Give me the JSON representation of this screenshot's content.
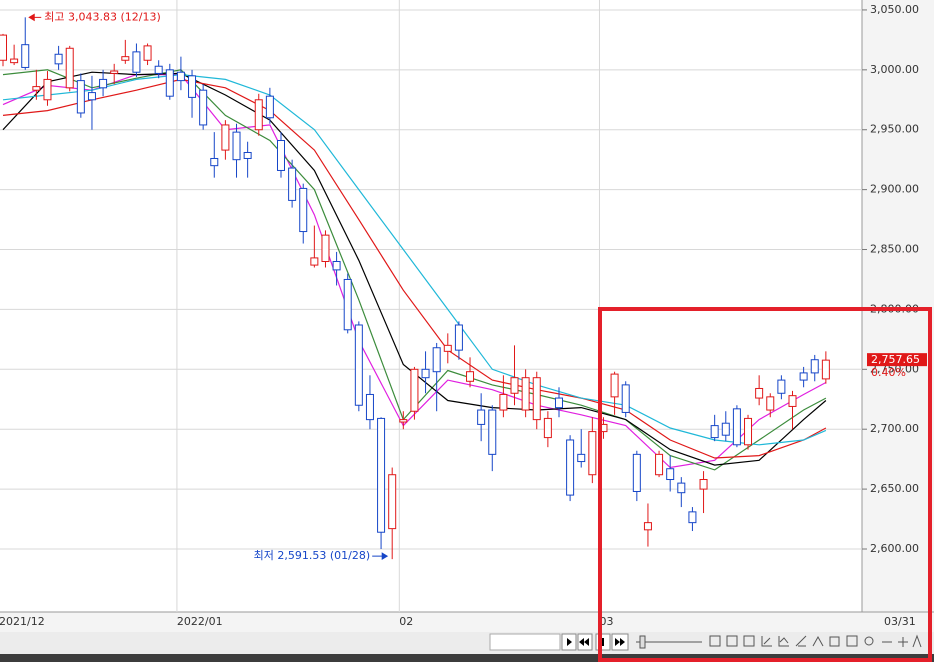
{
  "chart_data": {
    "type": "candlestick",
    "high_label": "최고 3,043.83 (12/13)",
    "low_label": "최저 2,591.53 (01/28)",
    "last_price": {
      "value": 2757.65,
      "label": "2,757.65"
    },
    "change": "0.40%",
    "cursor_date": "03/31",
    "up_color": "#e01818",
    "down_color": "#1646c8",
    "xlim": [
      -0.27,
      77.25
    ],
    "xticks": [
      {
        "value": 0,
        "label": "2021/12"
      },
      {
        "value": 16,
        "label": "2022/01"
      },
      {
        "value": 36,
        "label": "02"
      },
      {
        "value": 54,
        "label": "03"
      }
    ],
    "ylim": [
      2547.4,
      3058.3
    ],
    "yticks": [
      {
        "value": 2600,
        "label": "2,600.00"
      },
      {
        "value": 2650,
        "label": "2,650.00"
      },
      {
        "value": 2700,
        "label": "2,700.00"
      },
      {
        "value": 2750,
        "label": "2,750.00"
      },
      {
        "value": 2800,
        "label": "2,800.00"
      },
      {
        "value": 2850,
        "label": "2,850.00"
      },
      {
        "value": 2900,
        "label": "2,900.00"
      },
      {
        "value": 2950,
        "label": "2,950.00"
      },
      {
        "value": 3000,
        "label": "3,000.00"
      },
      {
        "value": 3050,
        "label": "3,050.00"
      }
    ],
    "grid": true,
    "open": [
      3008,
      3006,
      3021,
      2983,
      2975,
      3013,
      2985,
      2991,
      2981,
      2992,
      2997,
      3008,
      3015,
      3008,
      3003,
      3000,
      2998,
      2995,
      2983,
      2926,
      2933,
      2948,
      2931,
      2950,
      2978,
      2941,
      2918,
      2901,
      2837,
      2840,
      2840,
      2825,
      2787,
      2729,
      2709,
      2617,
      2706,
      2715,
      2750,
      2768,
      2765,
      2787,
      2740,
      2716,
      2716,
      2716,
      2730,
      2716,
      2708,
      2693,
      2726,
      2691,
      2679,
      2662,
      2698,
      2727,
      2737,
      2679,
      2616,
      2662,
      2667,
      2655,
      2631,
      2650,
      2703,
      2705,
      2717,
      2687,
      2726,
      2716,
      2741,
      2719,
      2747,
      2758,
      2742
    ],
    "high": [
      3030,
      3021,
      3043.83,
      3000,
      2999,
      3020,
      3020,
      2997,
      2995,
      3000,
      3005,
      3025,
      3022,
      3022,
      3008,
      3005,
      3011,
      3000,
      2988,
      2948,
      2958,
      2955,
      2940,
      2980,
      2985,
      2948,
      2925,
      2905,
      2870,
      2866,
      2848,
      2830,
      2790,
      2745,
      2710,
      2668,
      2715,
      2752,
      2765,
      2772,
      2780,
      2790,
      2760,
      2730,
      2720,
      2745,
      2770,
      2750,
      2748,
      2715,
      2735,
      2695,
      2700,
      2710,
      2710,
      2748,
      2740,
      2682,
      2638,
      2682,
      2678,
      2660,
      2635,
      2665,
      2712,
      2715,
      2720,
      2712,
      2745,
      2730,
      2745,
      2732,
      2752,
      2762,
      2765
    ],
    "low": [
      3003,
      3004,
      3000,
      2975,
      2970,
      3000,
      2982,
      2960,
      2950,
      2978,
      2988,
      3005,
      2994,
      3004,
      2993,
      2975,
      2983,
      2960,
      2950,
      2910,
      2925,
      2910,
      2910,
      2945,
      2955,
      2910,
      2885,
      2855,
      2835,
      2835,
      2820,
      2780,
      2715,
      2700,
      2600,
      2591.53,
      2700,
      2708,
      2730,
      2715,
      2755,
      2758,
      2735,
      2690,
      2665,
      2710,
      2720,
      2710,
      2700,
      2685,
      2710,
      2640,
      2668,
      2655,
      2692,
      2712,
      2710,
      2640,
      2602,
      2660,
      2648,
      2635,
      2615,
      2630,
      2690,
      2690,
      2685,
      2683,
      2720,
      2710,
      2725,
      2700,
      2735,
      2740,
      2738
    ],
    "close": [
      3029,
      3009,
      3002,
      2986,
      2992,
      3005,
      3018,
      2964,
      2975,
      2985,
      2999,
      3011,
      2998,
      3020,
      2997,
      2978,
      2991,
      2977,
      2954,
      2920,
      2954,
      2925,
      2926,
      2975,
      2960,
      2916,
      2891,
      2865,
      2843,
      2862,
      2833,
      2783,
      2720,
      2708,
      2614,
      2662,
      2708,
      2750,
      2743,
      2748,
      2770,
      2766,
      2748,
      2704,
      2679,
      2729,
      2743,
      2743,
      2743,
      2709,
      2718,
      2645,
      2673,
      2698,
      2704,
      2746,
      2714,
      2648,
      2622,
      2679,
      2658,
      2647,
      2622,
      2658,
      2693,
      2695,
      2687,
      2709,
      2734,
      2727,
      2730,
      2728,
      2741,
      2747,
      2757.65
    ],
    "lines": [
      {
        "color": "#e020e0",
        "x": [
          0,
          4,
          8,
          12,
          16,
          20,
          24,
          28,
          32,
          36,
          40,
          44,
          48,
          52,
          56,
          60,
          64,
          68,
          72,
          74
        ],
        "values": [
          2971,
          2987,
          2983,
          2996,
          2996,
          2950,
          2954,
          2879,
          2774,
          2703,
          2741,
          2733,
          2720,
          2712,
          2703,
          2668,
          2674,
          2708,
          2729,
          2739
        ]
      },
      {
        "color": "#3c8c3c",
        "x": [
          0,
          4,
          8,
          12,
          16,
          20,
          24,
          28,
          32,
          36,
          40,
          44,
          48,
          52,
          56,
          60,
          64,
          68,
          72,
          74
        ],
        "values": [
          2996,
          3000,
          2985,
          2993,
          3000,
          2962,
          2941,
          2900,
          2808,
          2708,
          2749,
          2737,
          2729,
          2720,
          2708,
          2678,
          2666,
          2691,
          2716,
          2726
        ]
      },
      {
        "color": "#000000",
        "x": [
          0,
          4,
          8,
          12,
          16,
          20,
          24,
          28,
          32,
          36,
          40,
          44,
          48,
          52,
          56,
          60,
          64,
          68,
          72,
          74
        ],
        "values": [
          2950,
          2990,
          2998,
          2996,
          2997,
          2979,
          2958,
          2916,
          2841,
          2754,
          2724,
          2718,
          2716,
          2718,
          2708,
          2683,
          2670,
          2674,
          2708,
          2724
        ]
      },
      {
        "color": "#e01818",
        "x": [
          0,
          4,
          8,
          12,
          16,
          20,
          24,
          28,
          32,
          36,
          40,
          44,
          48,
          52,
          56,
          60,
          64,
          68,
          72,
          74
        ],
        "values": [
          2962,
          2966,
          2975,
          2983,
          2992,
          2985,
          2966,
          2933,
          2875,
          2816,
          2766,
          2741,
          2733,
          2726,
          2716,
          2691,
          2676,
          2678,
          2691,
          2701
        ]
      },
      {
        "color": "#20b8d8",
        "x": [
          0,
          4,
          8,
          12,
          16,
          20,
          24,
          28,
          32,
          36,
          40,
          44,
          48,
          52,
          56,
          60,
          64,
          68,
          72,
          74
        ],
        "values": [
          2975,
          2979,
          2983,
          2992,
          2996,
          2992,
          2979,
          2950,
          2900,
          2850,
          2800,
          2750,
          2737,
          2726,
          2720,
          2701,
          2691,
          2687,
          2691,
          2699
        ]
      }
    ]
  }
}
